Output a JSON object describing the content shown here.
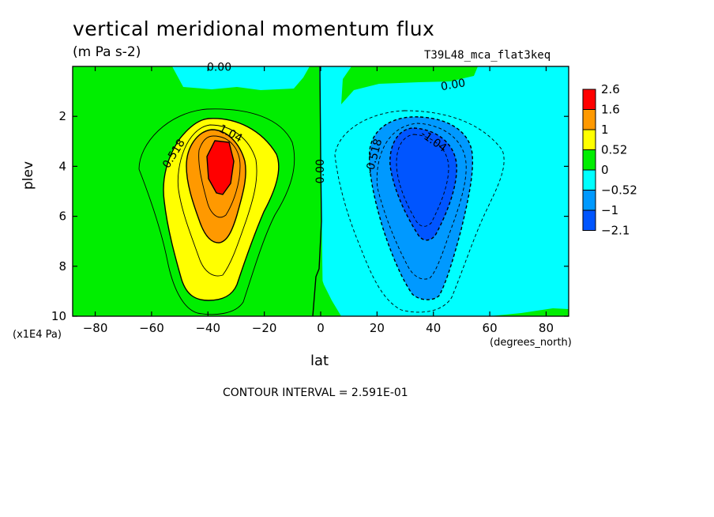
{
  "chart_data": {
    "type": "heatmap",
    "title": "vertical meridional momentum flux",
    "units": "(m Pa s-2)",
    "dataset_label": "T39L48_mca_flat3keq",
    "xlabel": "lat",
    "x_units": "(degrees_north)",
    "ylabel": "plev",
    "y_units": "(x1E4 Pa)",
    "xlim": [
      -88,
      88
    ],
    "ylim": [
      0,
      10
    ],
    "y_inverted": true,
    "x_ticks": [
      -80,
      -60,
      -40,
      -20,
      0,
      20,
      40,
      60,
      80
    ],
    "x_tick_labels": [
      "−80",
      "−60",
      "−40",
      "−20",
      "0",
      "20",
      "40",
      "60",
      "80"
    ],
    "y_ticks": [
      2,
      4,
      6,
      8,
      10
    ],
    "y_tick_labels": [
      "2",
      "4",
      "6",
      "8",
      "10"
    ],
    "contour_interval_text": "CONTOUR INTERVAL = 2.591E-01",
    "contour_labels": [
      {
        "text": "0.00",
        "x": -36,
        "y": 0.05
      },
      {
        "text": "0.00",
        "x": 47,
        "y": 0.75
      },
      {
        "text": "0.00",
        "x": 0,
        "y": 4.2
      },
      {
        "text": "0.518",
        "x": -52,
        "y": 3.5
      },
      {
        "text": "1.04",
        "x": -32,
        "y": 2.7
      },
      {
        "text": "-0.518",
        "x": 19,
        "y": 3.6
      },
      {
        "text": "-1.04",
        "x": 40,
        "y": 3.0
      }
    ],
    "colorbar": {
      "labels": [
        "2.6",
        "1.6",
        "1",
        "0.52",
        "0",
        "−0.52",
        "−1",
        "−2.1"
      ],
      "colors": [
        "#ff0000",
        "#ff9900",
        "#ffff00",
        "#00ee00",
        "#00ffff",
        "#0099ff",
        "#0055ff"
      ]
    },
    "fields": {
      "background_color": "#00ffff",
      "positive_regions": [
        {
          "name": "southern-hemisphere-maximum",
          "lat": -37,
          "plev": 4.0,
          "peak": 2.6
        },
        {
          "name": "northern-top-band",
          "lat": 42,
          "plev": 0.6,
          "peak": 0.3
        }
      ],
      "negative_regions": [
        {
          "name": "northern-hemisphere-minimum",
          "lat": 36,
          "plev": 4.2,
          "peak": -2.1
        },
        {
          "name": "southern-top-band",
          "lat": -30,
          "plev": 0.5,
          "peak": -0.3
        }
      ]
    }
  }
}
